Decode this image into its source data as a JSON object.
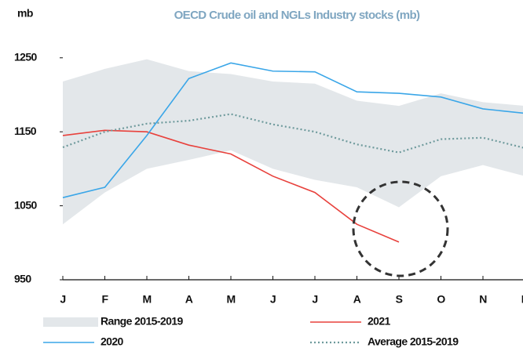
{
  "chart_data": {
    "type": "line",
    "title": "OECD  Crude oil and NGLs Industry stocks (mb)",
    "y_label": "mb",
    "categories": [
      "J",
      "F",
      "M",
      "A",
      "M",
      "J",
      "J",
      "A",
      "S",
      "O",
      "N",
      "D"
    ],
    "series": [
      {
        "name": "Range 2015-2019",
        "color": "#e3e7ea",
        "style": "range",
        "values": [
          1218,
          1235,
          1248,
          1232,
          1228,
          1218,
          1215,
          1192,
          1185,
          1202,
          1190,
          1185
        ],
        "low": [
          1025,
          1068,
          1100,
          1112,
          1125,
          1100,
          1085,
          1075,
          1048,
          1090,
          1105,
          1090
        ]
      },
      {
        "name": "2021",
        "color": "#e8413c",
        "style": "solid",
        "values": [
          1145,
          1152,
          1150,
          1132,
          1120,
          1090,
          1068,
          1025,
          1001,
          null,
          null,
          null
        ]
      },
      {
        "name": "2020",
        "color": "#3aa6e8",
        "style": "solid",
        "values": [
          1061,
          1075,
          1145,
          1222,
          1243,
          1232,
          1231,
          1204,
          1202,
          1197,
          1181,
          1175
        ]
      },
      {
        "name": "Average 2015-2019",
        "color": "#6e9a9c",
        "style": "dotted",
        "values": [
          1129,
          1150,
          1161,
          1165,
          1174,
          1160,
          1150,
          1133,
          1122,
          1140,
          1142,
          1128
        ]
      }
    ],
    "ylim": [
      950,
      1290
    ],
    "yticks": [
      950,
      1050,
      1150,
      1250
    ],
    "grid": false
  }
}
